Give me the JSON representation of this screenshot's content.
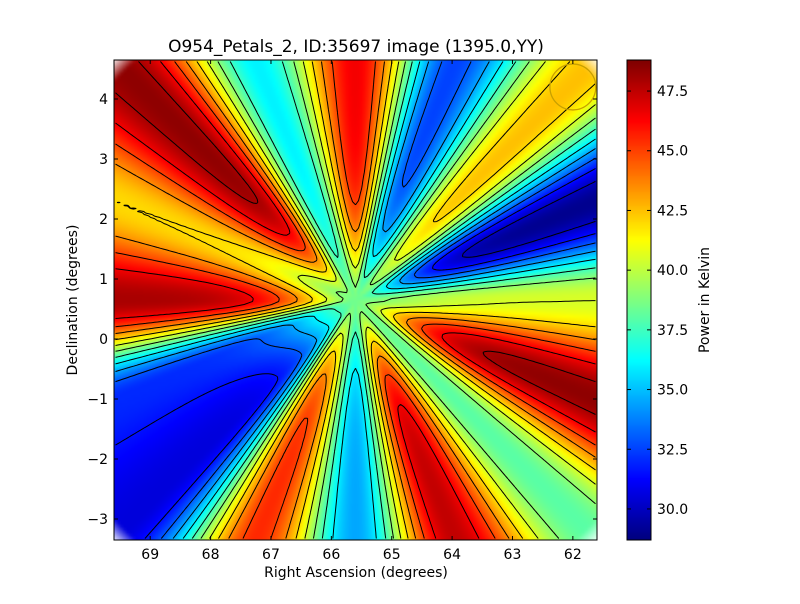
{
  "chart_data": {
    "type": "heatmap",
    "title": "O954_Petals_2, ID:35697 image (1395.0,YY)",
    "xlabel": "Right Ascension (degrees)",
    "ylabel": "Declination (degrees)",
    "xlim": [
      69.6,
      61.6
    ],
    "ylim": [
      -3.35,
      4.65
    ],
    "x_ticks": [
      "69",
      "68",
      "67",
      "66",
      "65",
      "64",
      "63",
      "62"
    ],
    "x_tick_values": [
      69,
      68,
      67,
      66,
      65,
      64,
      63,
      62
    ],
    "y_ticks": [
      "−3",
      "−2",
      "−1",
      "0",
      "1",
      "2",
      "3",
      "4"
    ],
    "y_tick_values": [
      -3,
      -2,
      -1,
      0,
      1,
      2,
      3,
      4
    ],
    "colorbar": {
      "label": "Power in Kelvin",
      "range": [
        28.7,
        48.8
      ],
      "ticks": [
        "30.0",
        "32.5",
        "35.0",
        "37.5",
        "40.0",
        "42.5",
        "45.0",
        "47.5"
      ],
      "tick_values": [
        30.0,
        32.5,
        35.0,
        37.5,
        40.0,
        42.5,
        45.0,
        47.5
      ],
      "colormap": "jet"
    },
    "center": [
      65.6,
      0.65
    ],
    "field_radius_deg": 5.4,
    "petals": [
      {
        "angle_deg": 0,
        "value": 40.5
      },
      {
        "angle_deg": 22.5,
        "value": 29.0
      },
      {
        "angle_deg": 45,
        "value": 42.5
      },
      {
        "angle_deg": 67.5,
        "value": 32.5
      },
      {
        "angle_deg": 90,
        "value": 46.5
      },
      {
        "angle_deg": 112.5,
        "value": 36.0
      },
      {
        "angle_deg": 135,
        "value": 48.5
      },
      {
        "angle_deg": 157.5,
        "value": 42.0
      },
      {
        "angle_deg": 180,
        "value": 48.0
      },
      {
        "angle_deg": 202.5,
        "value": 32.0
      },
      {
        "angle_deg": 225,
        "value": 30.5
      },
      {
        "angle_deg": 247.5,
        "value": 45.5
      },
      {
        "angle_deg": 270,
        "value": 34.5
      },
      {
        "angle_deg": 292.5,
        "value": 47.5
      },
      {
        "angle_deg": 315,
        "value": 38.0
      },
      {
        "angle_deg": 337.5,
        "value": 48.5
      }
    ],
    "center_value": 38.5,
    "contour_levels": [
      30,
      31.5,
      33,
      34.5,
      36,
      37.5,
      39,
      40.5,
      42,
      43.5,
      45,
      46.5,
      48
    ],
    "beam_marker": {
      "ra": 62.0,
      "dec": 4.2,
      "radius_deg": 0.38,
      "color": "#c8a000"
    }
  }
}
